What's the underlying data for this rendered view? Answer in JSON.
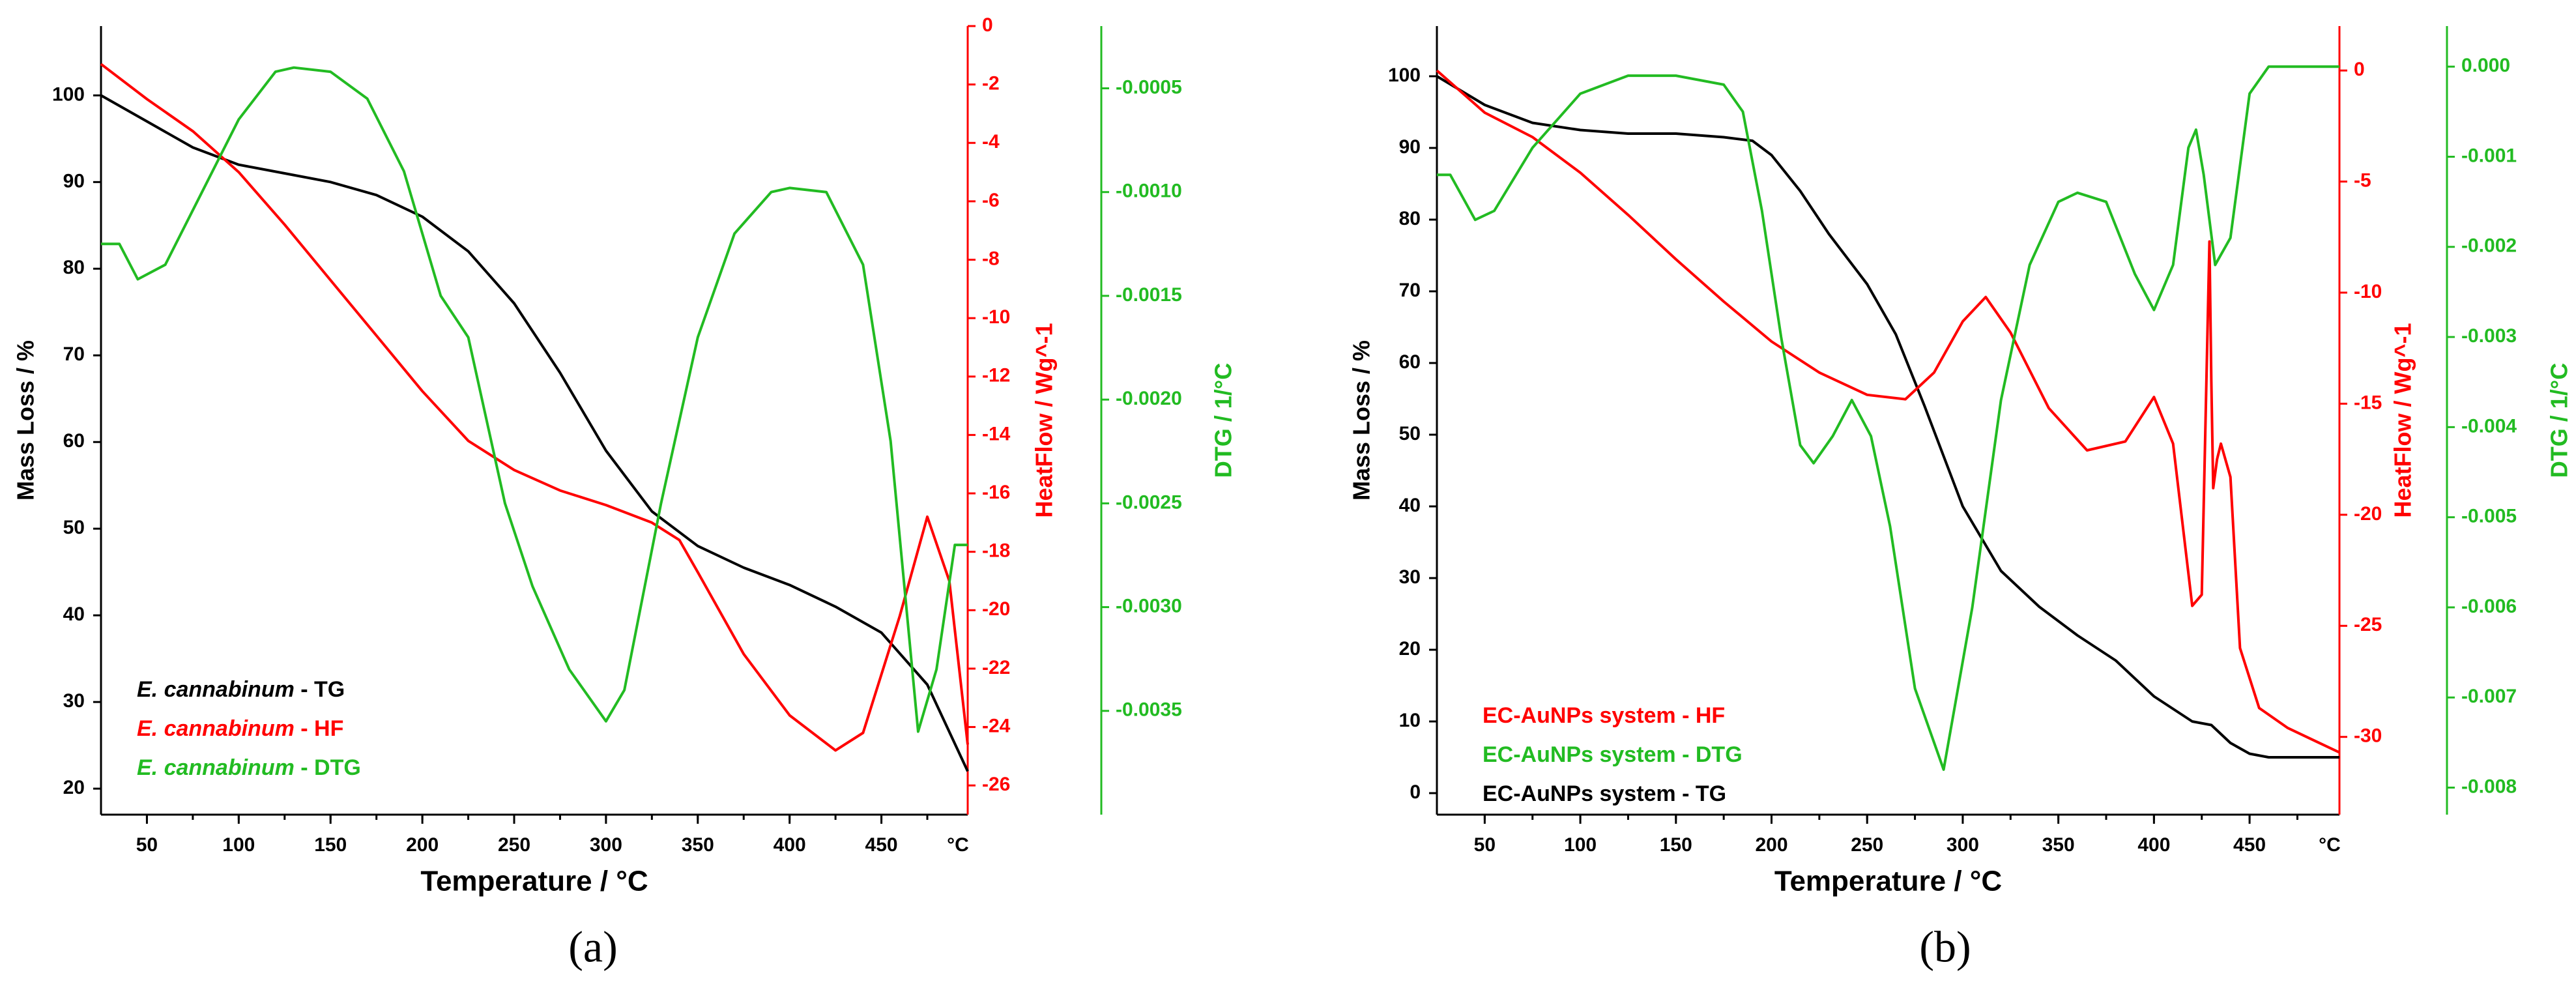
{
  "chart_data": [
    {
      "type": "line",
      "panel_label": "(a)",
      "colors": {
        "tg": "#000000",
        "hf": "#ff0000",
        "dtg": "#22bb22"
      },
      "xlabel": "Temperature /  °C",
      "x_end_label": "°C",
      "xlim": [
        25,
        497
      ],
      "x_ticks": [
        50,
        100,
        150,
        200,
        250,
        300,
        350,
        400,
        450
      ],
      "y_left": {
        "label": "Mass Loss /  %",
        "lim": [
          17,
          108
        ],
        "ticks": [
          20,
          30,
          40,
          50,
          60,
          70,
          80,
          90,
          100
        ]
      },
      "y_right": {
        "label": "HeatFlow /  Wg^-1",
        "lim": [
          -27,
          0
        ],
        "ticks": [
          0,
          -2,
          -4,
          -6,
          -8,
          -10,
          -12,
          -14,
          -16,
          -18,
          -20,
          -22,
          -24,
          -26
        ]
      },
      "y_right2": {
        "label": "DTG /  1/°C",
        "lim": [
          -0.004,
          -0.0002
        ],
        "ticks": [
          -0.0005,
          -0.001,
          -0.0015,
          -0.002,
          -0.0025,
          -0.003,
          -0.0035
        ],
        "tick_labels": [
          "-0.0005",
          "-0.0010",
          "-0.0015",
          "-0.0020",
          "-0.0025",
          "-0.0030",
          "-0.0035"
        ]
      },
      "legend": [
        {
          "name": "E. cannabinum",
          "suffix": " - TG",
          "series": "tg"
        },
        {
          "name": "E. cannabinum",
          "suffix": "  - HF",
          "series": "hf"
        },
        {
          "name": "E. cannabinum",
          "suffix": "  - DTG",
          "series": "dtg"
        }
      ],
      "series": [
        {
          "key": "tg",
          "axis": "left",
          "x": [
            25,
            50,
            75,
            100,
            125,
            150,
            175,
            200,
            225,
            250,
            275,
            300,
            325,
            350,
            375,
            400,
            425,
            450,
            475,
            497
          ],
          "values": [
            100,
            97,
            94,
            92,
            91,
            90,
            88.5,
            86,
            82,
            76,
            68,
            59,
            52,
            48,
            45.5,
            43.5,
            41,
            38,
            32,
            22
          ]
        },
        {
          "key": "hf",
          "axis": "right",
          "x": [
            25,
            50,
            75,
            100,
            125,
            150,
            175,
            200,
            225,
            250,
            275,
            300,
            325,
            340,
            350,
            375,
            400,
            425,
            440,
            460,
            475,
            487,
            497
          ],
          "values": [
            -1.3,
            -2.5,
            -3.6,
            -5.0,
            -6.8,
            -8.7,
            -10.6,
            -12.5,
            -14.2,
            -15.2,
            -15.9,
            -16.4,
            -17.0,
            -17.6,
            -18.7,
            -21.5,
            -23.6,
            -24.8,
            -24.2,
            -20.2,
            -16.8,
            -19.0,
            -24.6
          ]
        },
        {
          "key": "dtg",
          "axis": "right2",
          "x": [
            25,
            35,
            45,
            60,
            80,
            100,
            120,
            130,
            150,
            170,
            190,
            210,
            225,
            245,
            260,
            280,
            300,
            310,
            330,
            350,
            370,
            390,
            400,
            420,
            440,
            455,
            470,
            480,
            490,
            497
          ],
          "values": [
            -0.00125,
            -0.00125,
            -0.00142,
            -0.00135,
            -0.001,
            -0.00065,
            -0.00042,
            -0.0004,
            -0.00042,
            -0.00055,
            -0.0009,
            -0.0015,
            -0.0017,
            -0.0025,
            -0.0029,
            -0.0033,
            -0.00355,
            -0.0034,
            -0.0025,
            -0.0017,
            -0.0012,
            -0.001,
            -0.00098,
            -0.001,
            -0.00135,
            -0.0022,
            -0.0036,
            -0.0033,
            -0.0027,
            -0.0027
          ]
        }
      ]
    },
    {
      "type": "line",
      "panel_label": "(b)",
      "colors": {
        "tg": "#000000",
        "hf": "#ff0000",
        "dtg": "#22bb22"
      },
      "xlabel": "Temperature /  °C",
      "x_end_label": "°C",
      "xlim": [
        25,
        497
      ],
      "x_ticks": [
        50,
        100,
        150,
        200,
        250,
        300,
        350,
        400,
        450
      ],
      "y_left": {
        "label": "Mass Loss /  %",
        "lim": [
          -3,
          107
        ],
        "ticks": [
          0,
          10,
          20,
          30,
          40,
          50,
          60,
          70,
          80,
          90,
          100
        ]
      },
      "y_right": {
        "label": "HeatFlow /  Wg^-1",
        "lim": [
          -33.5,
          2
        ],
        "ticks": [
          0,
          -5,
          -10,
          -15,
          -20,
          -25,
          -30
        ]
      },
      "y_right2": {
        "label": "DTG /  1/°C",
        "lim": [
          -0.0083,
          0.00045
        ],
        "ticks": [
          0.0,
          -0.001,
          -0.002,
          -0.003,
          -0.004,
          -0.005,
          -0.006,
          -0.007,
          -0.008
        ],
        "tick_labels": [
          "0.000",
          "-0.001",
          "-0.002",
          "-0.003",
          "-0.004",
          "-0.005",
          "-0.006",
          "-0.007",
          "-0.008"
        ]
      },
      "legend": [
        {
          "name": "EC-AuNPs system",
          "suffix": " - HF",
          "series": "hf"
        },
        {
          "name": "EC-AuNPs system",
          "suffix": " - DTG",
          "series": "dtg"
        },
        {
          "name": "EC-AuNPs system",
          "suffix": " - TG",
          "series": "tg"
        }
      ],
      "series": [
        {
          "key": "tg",
          "axis": "left",
          "x": [
            25,
            50,
            75,
            100,
            125,
            150,
            175,
            190,
            200,
            215,
            230,
            250,
            265,
            280,
            300,
            320,
            340,
            360,
            380,
            400,
            420,
            430,
            440,
            450,
            460,
            497
          ],
          "values": [
            100,
            96,
            93.5,
            92.5,
            92,
            92,
            91.5,
            91,
            89,
            84,
            78,
            71,
            64,
            54,
            40,
            31,
            26,
            22,
            18.5,
            13.5,
            10,
            9.5,
            7,
            5.5,
            5,
            5
          ]
        },
        {
          "key": "hf",
          "axis": "right",
          "x": [
            25,
            50,
            75,
            100,
            125,
            150,
            175,
            200,
            225,
            250,
            270,
            285,
            300,
            312,
            325,
            345,
            365,
            385,
            400,
            410,
            420,
            425,
            429,
            430,
            431,
            433,
            435,
            440,
            445,
            455,
            470,
            497
          ],
          "values": [
            0,
            -1.9,
            -3.0,
            -4.6,
            -6.5,
            -8.5,
            -10.4,
            -12.2,
            -13.6,
            -14.6,
            -14.8,
            -13.6,
            -11.3,
            -10.2,
            -11.8,
            -15.2,
            -17.1,
            -16.7,
            -14.7,
            -16.8,
            -24.1,
            -23.6,
            -7.7,
            -14.0,
            -18.8,
            -17.5,
            -16.8,
            -18.3,
            -26.0,
            -28.7,
            -29.6,
            -30.7
          ]
        },
        {
          "key": "dtg",
          "axis": "right2",
          "x": [
            25,
            32,
            45,
            55,
            75,
            100,
            125,
            150,
            175,
            185,
            195,
            205,
            215,
            222,
            232,
            242,
            252,
            262,
            275,
            290,
            305,
            320,
            335,
            350,
            360,
            375,
            390,
            400,
            410,
            418,
            422,
            426,
            432,
            440,
            450,
            460,
            475,
            497
          ],
          "values": [
            -0.0012,
            -0.0012,
            -0.0017,
            -0.0016,
            -0.0009,
            -0.0003,
            -0.0001,
            -0.0001,
            -0.0002,
            -0.0005,
            -0.0016,
            -0.003,
            -0.0042,
            -0.0044,
            -0.0041,
            -0.0037,
            -0.0041,
            -0.0051,
            -0.0069,
            -0.0078,
            -0.006,
            -0.0037,
            -0.0022,
            -0.0015,
            -0.0014,
            -0.0015,
            -0.0023,
            -0.0027,
            -0.0022,
            -0.0009,
            -0.0007,
            -0.0012,
            -0.0022,
            -0.0019,
            -0.0003,
            0,
            0,
            0
          ]
        }
      ]
    }
  ]
}
